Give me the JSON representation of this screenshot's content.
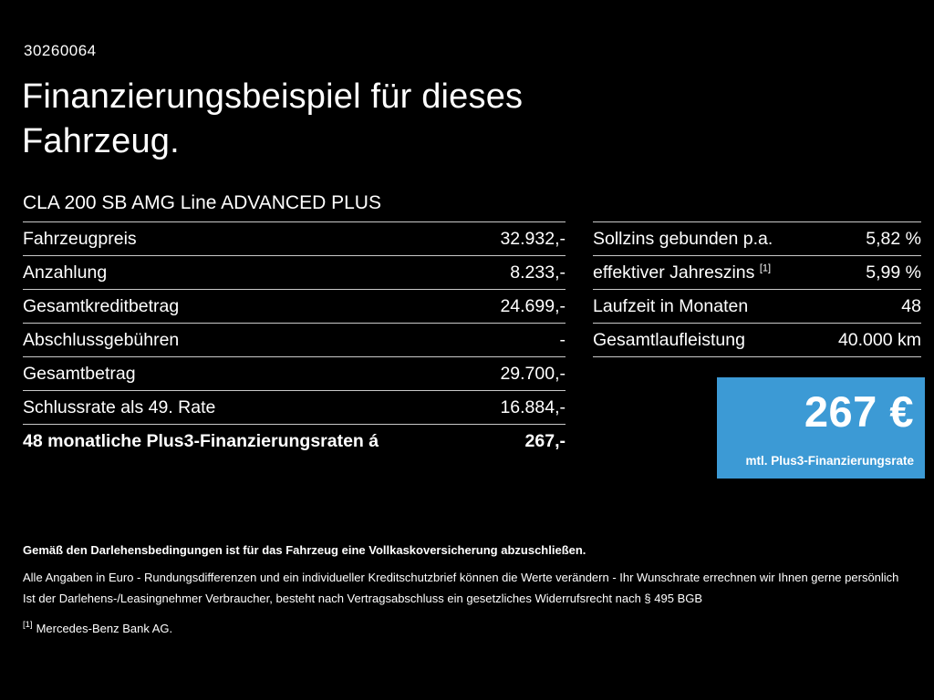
{
  "page": {
    "id_number": "30260064",
    "title_line1": "Finanzierungsbeispiel für dieses",
    "title_line2": "Fahrzeug.",
    "vehicle_name": "CLA 200 SB AMG Line ADVANCED PLUS"
  },
  "left_table": {
    "rows": [
      {
        "label": "Fahrzeugpreis",
        "value": "32.932,-"
      },
      {
        "label": "Anzahlung",
        "value": "8.233,-"
      },
      {
        "label": "Gesamtkreditbetrag",
        "value": "24.699,-"
      },
      {
        "label": "Abschlussgebühren",
        "value": "-"
      },
      {
        "label": "Gesamtbetrag",
        "value": "29.700,-"
      },
      {
        "label": "Schlussrate als 49. Rate",
        "value": "16.884,-"
      },
      {
        "label": "48 monatliche Plus3-Finanzierungsraten á",
        "value": "267,-"
      }
    ]
  },
  "right_table": {
    "rows": [
      {
        "label": "Sollzins gebunden p.a.",
        "value": "5,82 %"
      },
      {
        "label": "effektiver Jahreszins",
        "label_sup": "[1]",
        "value": "5,99 %"
      },
      {
        "label": "Laufzeit in Monaten",
        "value": "48"
      },
      {
        "label": "Gesamtlaufleistung",
        "value": "40.000 km"
      }
    ]
  },
  "price_box": {
    "amount": "267 €",
    "caption": "mtl. Plus3-Finanzierungsrate",
    "background": "#3c9ad5"
  },
  "footer": {
    "line1": "Gemäß den Darlehensbedingungen ist für das Fahrzeug eine Vollkaskoversicherung abzuschließen.",
    "line2": "Alle Angaben in Euro - Rundungsdifferenzen und ein individueller Kreditschutzbrief können die Werte verändern - Ihr Wunschrate errechnen wir Ihnen gerne persönlich",
    "line3": "Ist der Darlehens-/Leasingnehmer Verbraucher, besteht nach Vertragsabschluss ein gesetzliches Widerrufsrecht nach § 495 BGB",
    "footnote_marker": "[1]",
    "footnote_text": "Mercedes-Benz Bank AG."
  }
}
